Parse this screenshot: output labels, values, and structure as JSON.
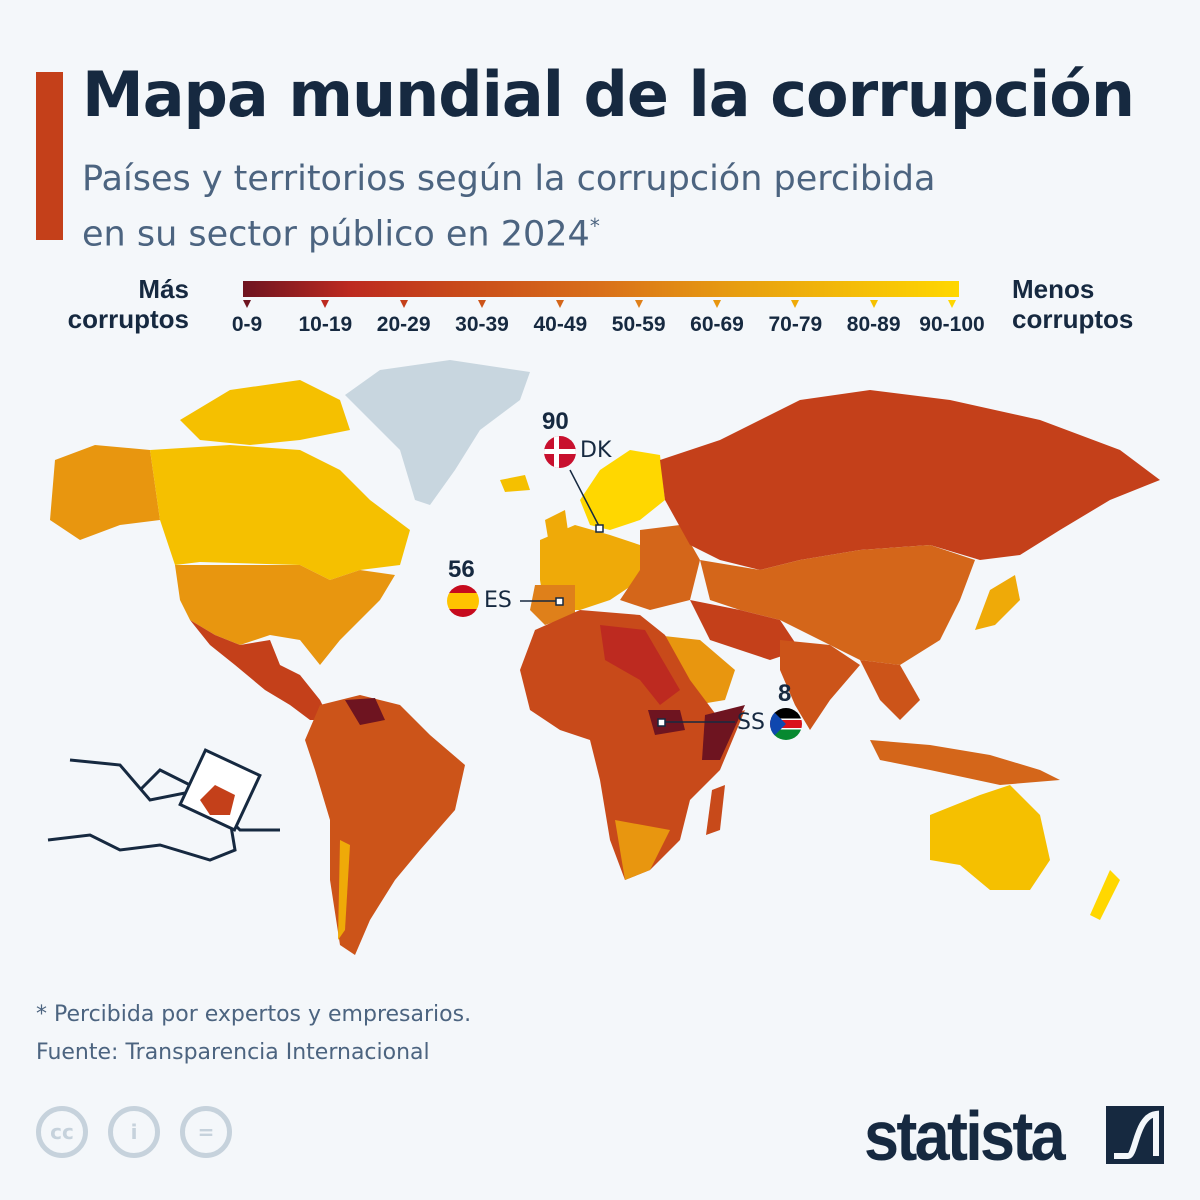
{
  "header": {
    "title": "Mapa mundial de la corrupción",
    "subtitle_line1": "Países y territorios según la corrupción percibida",
    "subtitle_line2": "en su sector público en 2024",
    "subtitle_mark": "*"
  },
  "legend": {
    "left_label_1": "Más",
    "left_label_2": "corruptos",
    "right_label_1": "Menos",
    "right_label_2": "corruptos",
    "bins": [
      "0-9",
      "10-19",
      "20-29",
      "30-39",
      "40-49",
      "50-59",
      "60-69",
      "70-79",
      "80-89",
      "90-100"
    ],
    "colors": [
      "#6e1420",
      "#bd2a20",
      "#c4401a",
      "#cc5419",
      "#d4661a",
      "#df801a",
      "#e8960f",
      "#efaa08",
      "#f5c000",
      "#ffd700"
    ],
    "no_data_color": "#c8d6df"
  },
  "callouts": [
    {
      "code": "DK",
      "value": "90",
      "score_bin": "90-100"
    },
    {
      "code": "ES",
      "value": "56",
      "score_bin": "50-59"
    },
    {
      "code": "SS",
      "value": "8",
      "score_bin": "0-9"
    }
  ],
  "footer": {
    "note": "* Percibida por expertos y empresarios.",
    "source": "Fuente: Transparencia Internacional",
    "cc_icons": [
      "cc-icon",
      "attribution-icon",
      "no-derivatives-icon"
    ],
    "brand": "statista"
  }
}
